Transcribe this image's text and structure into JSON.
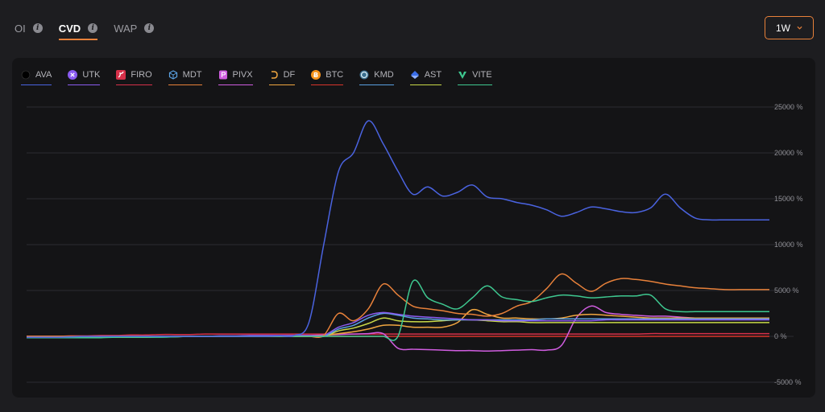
{
  "tabs": [
    {
      "label": "OI",
      "active": false
    },
    {
      "label": "CVD",
      "active": true
    },
    {
      "label": "WAP",
      "active": false
    }
  ],
  "range_selector": {
    "value": "1W"
  },
  "colors": {
    "accent": "#e8813a"
  },
  "chart_data": {
    "type": "line",
    "title": "",
    "xlabel": "",
    "ylabel": "",
    "ylim": [
      -5000,
      25000
    ],
    "yticks": [
      {
        "value": 25000,
        "label": "25000 %"
      },
      {
        "value": 20000,
        "label": "20000 %"
      },
      {
        "value": 15000,
        "label": "15000 %"
      },
      {
        "value": 10000,
        "label": "10000 %"
      },
      {
        "value": 5000,
        "label": "5000 %"
      },
      {
        "value": 0,
        "label": "0 %"
      },
      {
        "value": -5000,
        "label": "-5000 %"
      }
    ],
    "grid": true,
    "legend": "top-left",
    "x": [
      0,
      2,
      4,
      6,
      8,
      10,
      12,
      14,
      16,
      18,
      20,
      22,
      24,
      26,
      28,
      30,
      32,
      34,
      36,
      38,
      40,
      42,
      44,
      46,
      48,
      50,
      52,
      54,
      56,
      58,
      60,
      62,
      64,
      66,
      68,
      70,
      72,
      74,
      76,
      78,
      80,
      82,
      84,
      86,
      88,
      90,
      92,
      94,
      96,
      98,
      100
    ],
    "series": [
      {
        "name": "AVA",
        "color": "#4a63e0",
        "icon": "ava-icon",
        "values": [
          -100,
          -100,
          -100,
          -50,
          0,
          0,
          0,
          0,
          0,
          0,
          0,
          0,
          0,
          0,
          0,
          0,
          0,
          50,
          100,
          1500,
          10000,
          18000,
          20000,
          23500,
          21000,
          18000,
          15500,
          16300,
          15300,
          15700,
          16500,
          15200,
          15000,
          14600,
          14300,
          13800,
          13100,
          13500,
          14100,
          13900,
          13600,
          13500,
          14000,
          15500,
          14000,
          12900,
          12700,
          12700,
          12700,
          12700,
          12700
        ]
      },
      {
        "name": "UTK",
        "color": "#8a5bf0",
        "icon": "utk-icon",
        "values": [
          -100,
          -100,
          -150,
          -150,
          -100,
          -100,
          -50,
          -50,
          0,
          0,
          0,
          0,
          0,
          50,
          50,
          100,
          100,
          100,
          100,
          100,
          100,
          1000,
          1500,
          2300,
          2600,
          2400,
          2200,
          2100,
          2000,
          1900,
          1800,
          1800,
          1700,
          1700,
          1700,
          1700,
          1700,
          1700,
          1700,
          1800,
          1800,
          1800,
          1800,
          1800,
          1800,
          1800,
          1800,
          1800,
          1800,
          1800,
          1800
        ]
      },
      {
        "name": "FIRO",
        "color": "#d63049",
        "icon": "firo-icon",
        "values": [
          0,
          0,
          0,
          50,
          50,
          100,
          100,
          150,
          150,
          200,
          200,
          200,
          250,
          250,
          250,
          250,
          250,
          250,
          250,
          250,
          250,
          250,
          250,
          250,
          250,
          250,
          250,
          250,
          250,
          250,
          250,
          250,
          250,
          250,
          250,
          250,
          250,
          250,
          250,
          250,
          250,
          250,
          300,
          300,
          300,
          300,
          300,
          300,
          300,
          300,
          300
        ]
      },
      {
        "name": "MDT",
        "color": "#e8813a",
        "icon": "mdt-icon",
        "values": [
          0,
          0,
          0,
          0,
          0,
          0,
          0,
          0,
          0,
          0,
          0,
          0,
          0,
          0,
          0,
          0,
          0,
          0,
          0,
          0,
          100,
          2500,
          1700,
          3000,
          5700,
          4500,
          3300,
          3000,
          2800,
          2500,
          2400,
          2200,
          2500,
          3300,
          3800,
          5200,
          6800,
          5800,
          4900,
          5800,
          6300,
          6200,
          6000,
          5700,
          5500,
          5300,
          5200,
          5100,
          5100,
          5100,
          5100
        ]
      },
      {
        "name": "PIVX",
        "color": "#d05de0",
        "icon": "pivx-icon",
        "values": [
          0,
          0,
          0,
          0,
          0,
          0,
          0,
          0,
          0,
          0,
          0,
          0,
          0,
          0,
          0,
          0,
          0,
          0,
          100,
          100,
          150,
          200,
          250,
          300,
          300,
          -1300,
          -1400,
          -1450,
          -1500,
          -1550,
          -1550,
          -1600,
          -1550,
          -1500,
          -1450,
          -1500,
          -1000,
          2000,
          3300,
          2600,
          2400,
          2300,
          2200,
          2200,
          2100,
          2000,
          2000,
          2000,
          2000,
          2000,
          2000
        ]
      },
      {
        "name": "DF",
        "color": "#f0a640",
        "icon": "df-icon",
        "values": [
          0,
          0,
          0,
          0,
          0,
          0,
          0,
          0,
          0,
          0,
          0,
          0,
          0,
          0,
          0,
          0,
          0,
          0,
          0,
          0,
          100,
          300,
          500,
          800,
          1200,
          1200,
          1000,
          1000,
          1000,
          1500,
          2900,
          2400,
          2000,
          2000,
          1900,
          1900,
          2000,
          2300,
          2400,
          2300,
          2200,
          2100,
          2000,
          2000,
          2000,
          2000,
          2000,
          2000,
          2000,
          2000,
          2000
        ]
      },
      {
        "name": "BTC",
        "color": "#d9342b",
        "icon": "btc-icon",
        "values": [
          0,
          0,
          0,
          0,
          0,
          0,
          0,
          0,
          0,
          0,
          0,
          0,
          0,
          0,
          0,
          0,
          0,
          0,
          0,
          0,
          0,
          0,
          0,
          0,
          0,
          0,
          0,
          0,
          0,
          0,
          0,
          0,
          0,
          0,
          0,
          0,
          0,
          0,
          0,
          0,
          0,
          0,
          0,
          0,
          0,
          0,
          0,
          0,
          0,
          0,
          0
        ]
      },
      {
        "name": "KMD",
        "color": "#5aa0e0",
        "icon": "kmd-icon",
        "values": [
          -100,
          -100,
          -100,
          -100,
          -50,
          -50,
          0,
          0,
          0,
          0,
          0,
          0,
          0,
          0,
          0,
          0,
          0,
          0,
          0,
          0,
          0,
          800,
          1200,
          2000,
          2500,
          2300,
          2000,
          1900,
          1800,
          1800,
          1800,
          1800,
          1800,
          1800,
          1800,
          1900,
          1900,
          1900,
          1900,
          1900,
          1900,
          1900,
          1900,
          1900,
          1900,
          1900,
          1900,
          1900,
          1900,
          1900,
          1900
        ]
      },
      {
        "name": "AST",
        "color": "#c8d848",
        "icon": "ast-icon",
        "values": [
          -100,
          -100,
          -100,
          -100,
          -100,
          -100,
          -100,
          -100,
          -100,
          -50,
          -50,
          0,
          0,
          0,
          0,
          0,
          0,
          0,
          0,
          0,
          0,
          600,
          900,
          1400,
          2000,
          1700,
          1600,
          1600,
          1700,
          1800,
          1800,
          1700,
          1600,
          1600,
          1500,
          1500,
          1500,
          1500,
          1500,
          1500,
          1500,
          1500,
          1500,
          1500,
          1500,
          1500,
          1500,
          1500,
          1500,
          1500,
          1500
        ]
      },
      {
        "name": "VITE",
        "color": "#3ec890",
        "icon": "vite-icon",
        "values": [
          -150,
          -150,
          -150,
          -150,
          -150,
          -150,
          -100,
          -100,
          -100,
          -100,
          -50,
          0,
          0,
          0,
          0,
          0,
          0,
          0,
          0,
          0,
          0,
          0,
          0,
          0,
          0,
          0,
          6000,
          4200,
          3500,
          3000,
          4200,
          5500,
          4300,
          4000,
          3800,
          4200,
          4500,
          4400,
          4200,
          4300,
          4400,
          4400,
          4500,
          3000,
          2700,
          2700,
          2700,
          2700,
          2700,
          2700,
          2700
        ]
      }
    ]
  }
}
